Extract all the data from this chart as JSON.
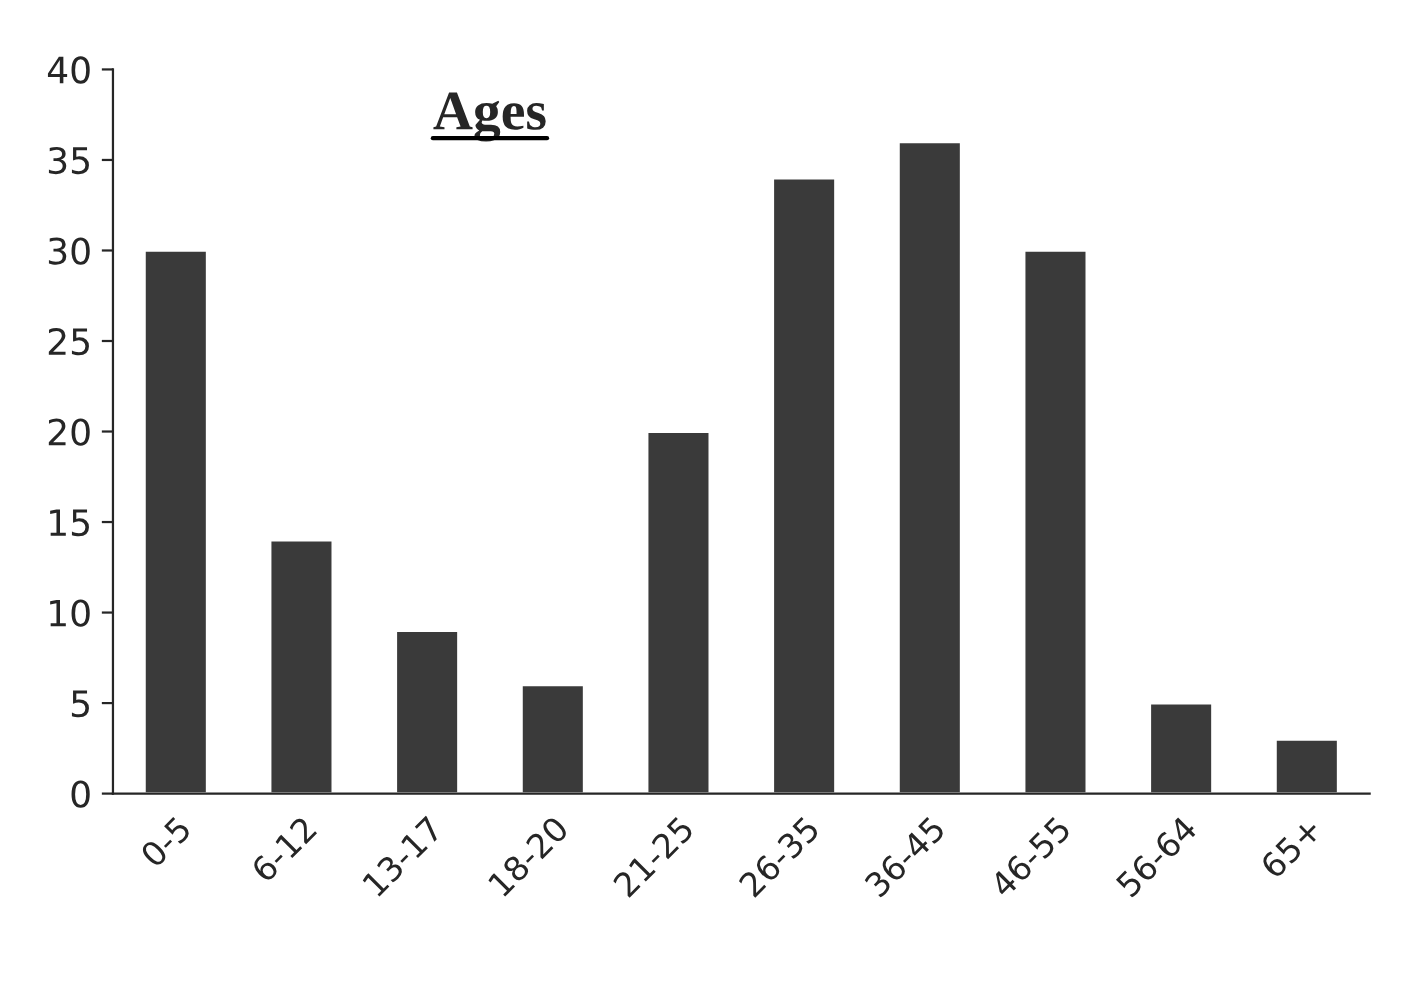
{
  "chart_data": {
    "type": "bar",
    "title": "Ages",
    "categories": [
      "0-5",
      "6-12",
      "13-17",
      "18-20",
      "21-25",
      "26-35",
      "36-45",
      "46-55",
      "56-64",
      "65+"
    ],
    "values": [
      30,
      14,
      9,
      6,
      20,
      34,
      36,
      30,
      5,
      3
    ],
    "color": "#3a3a3a",
    "ylim": [
      0,
      40
    ],
    "yticks": [
      0,
      5,
      10,
      15,
      20,
      25,
      30,
      35,
      40
    ],
    "grid": false,
    "legend": false
  }
}
